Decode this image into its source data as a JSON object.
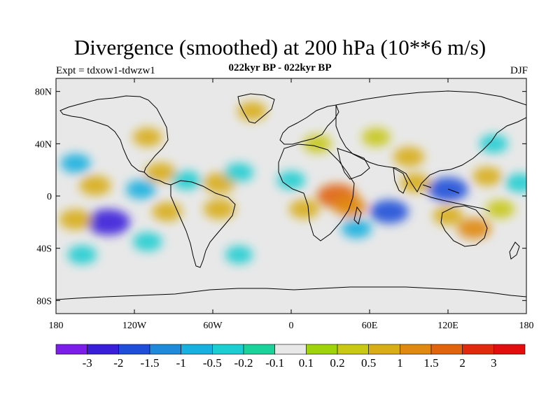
{
  "header": {
    "title": "Divergence (smoothed) at 200 hPa (10**6 m/s)",
    "experiment": "Expt = tdxow1-tdwzw1",
    "period": "022kyr BP - 022kyr BP",
    "season": "DJF"
  },
  "axes": {
    "lat_ticks": [
      {
        "label": "80N",
        "lat": 80
      },
      {
        "label": "40N",
        "lat": 40
      },
      {
        "label": "0",
        "lat": 0
      },
      {
        "label": "40S",
        "lat": -40
      },
      {
        "label": "80S",
        "lat": -80
      }
    ],
    "lon_ticks": [
      {
        "label": "180",
        "lon": -180
      },
      {
        "label": "120W",
        "lon": -120
      },
      {
        "label": "60W",
        "lon": -60
      },
      {
        "label": "0",
        "lon": 0
      },
      {
        "label": "60E",
        "lon": 60
      },
      {
        "label": "120E",
        "lon": 120
      },
      {
        "label": "180",
        "lon": 180
      }
    ],
    "lat_range": [
      -90,
      90
    ],
    "lon_range": [
      -180,
      180
    ]
  },
  "colorbar": {
    "colors": [
      "#7b1ee8",
      "#3a1fd9",
      "#1f4fd8",
      "#1f8ad9",
      "#18b0e0",
      "#1ccdd2",
      "#1bd39a",
      "#e8e8e8",
      "#9fd40c",
      "#c8c815",
      "#d8ad18",
      "#e08812",
      "#e0640d",
      "#e02a0c",
      "#e20e0e"
    ],
    "labels": [
      "-3",
      "-2",
      "-1.5",
      "-1",
      "-0.5",
      "-0.2",
      "-0.1",
      "0.1",
      "0.2",
      "0.5",
      "1",
      "1.5",
      "2",
      "3"
    ]
  },
  "chart_data": {
    "type": "heatmap",
    "title": "Divergence (smoothed) at 200 hPa (10**6 m/s)",
    "levels": [
      -3,
      -2,
      -1.5,
      -1,
      -0.5,
      -0.2,
      -0.1,
      0.1,
      0.2,
      0.5,
      1,
      1.5,
      2,
      3
    ],
    "features": [
      {
        "lon": -165,
        "lat": 25,
        "value": -0.6
      },
      {
        "lon": -150,
        "lat": 8,
        "value": 0.8
      },
      {
        "lon": -140,
        "lat": -20,
        "value": -2.2
      },
      {
        "lon": -165,
        "lat": -18,
        "value": 0.9
      },
      {
        "lon": -160,
        "lat": -45,
        "value": -0.5
      },
      {
        "lon": -110,
        "lat": 45,
        "value": 0.5
      },
      {
        "lon": -100,
        "lat": 18,
        "value": 0.7
      },
      {
        "lon": -115,
        "lat": 5,
        "value": -0.6
      },
      {
        "lon": -80,
        "lat": 12,
        "value": -0.5
      },
      {
        "lon": -95,
        "lat": -12,
        "value": 0.6
      },
      {
        "lon": -110,
        "lat": -35,
        "value": -0.5
      },
      {
        "lon": -55,
        "lat": 10,
        "value": 0.9
      },
      {
        "lon": -55,
        "lat": -10,
        "value": 0.8
      },
      {
        "lon": -40,
        "lat": 18,
        "value": -0.5
      },
      {
        "lon": -40,
        "lat": -45,
        "value": -0.3
      },
      {
        "lon": -30,
        "lat": 65,
        "value": 0.5
      },
      {
        "lon": 0,
        "lat": 12,
        "value": -0.4
      },
      {
        "lon": 10,
        "lat": -10,
        "value": 0.6
      },
      {
        "lon": 20,
        "lat": 40,
        "value": 0.4
      },
      {
        "lon": 35,
        "lat": 0,
        "value": 1.8
      },
      {
        "lon": 45,
        "lat": -8,
        "value": 1.0
      },
      {
        "lon": 50,
        "lat": -25,
        "value": -0.6
      },
      {
        "lon": 65,
        "lat": 45,
        "value": 0.4
      },
      {
        "lon": 75,
        "lat": -12,
        "value": -1.6
      },
      {
        "lon": 90,
        "lat": 30,
        "value": 0.7
      },
      {
        "lon": 95,
        "lat": 10,
        "value": 0.6
      },
      {
        "lon": 120,
        "lat": 5,
        "value": -1.8
      },
      {
        "lon": 120,
        "lat": -15,
        "value": 0.6
      },
      {
        "lon": 140,
        "lat": -25,
        "value": 1.0
      },
      {
        "lon": 150,
        "lat": 15,
        "value": 0.5
      },
      {
        "lon": 155,
        "lat": 40,
        "value": -0.4
      },
      {
        "lon": 175,
        "lat": 10,
        "value": -0.5
      },
      {
        "lon": 160,
        "lat": -10,
        "value": 0.4
      }
    ]
  }
}
